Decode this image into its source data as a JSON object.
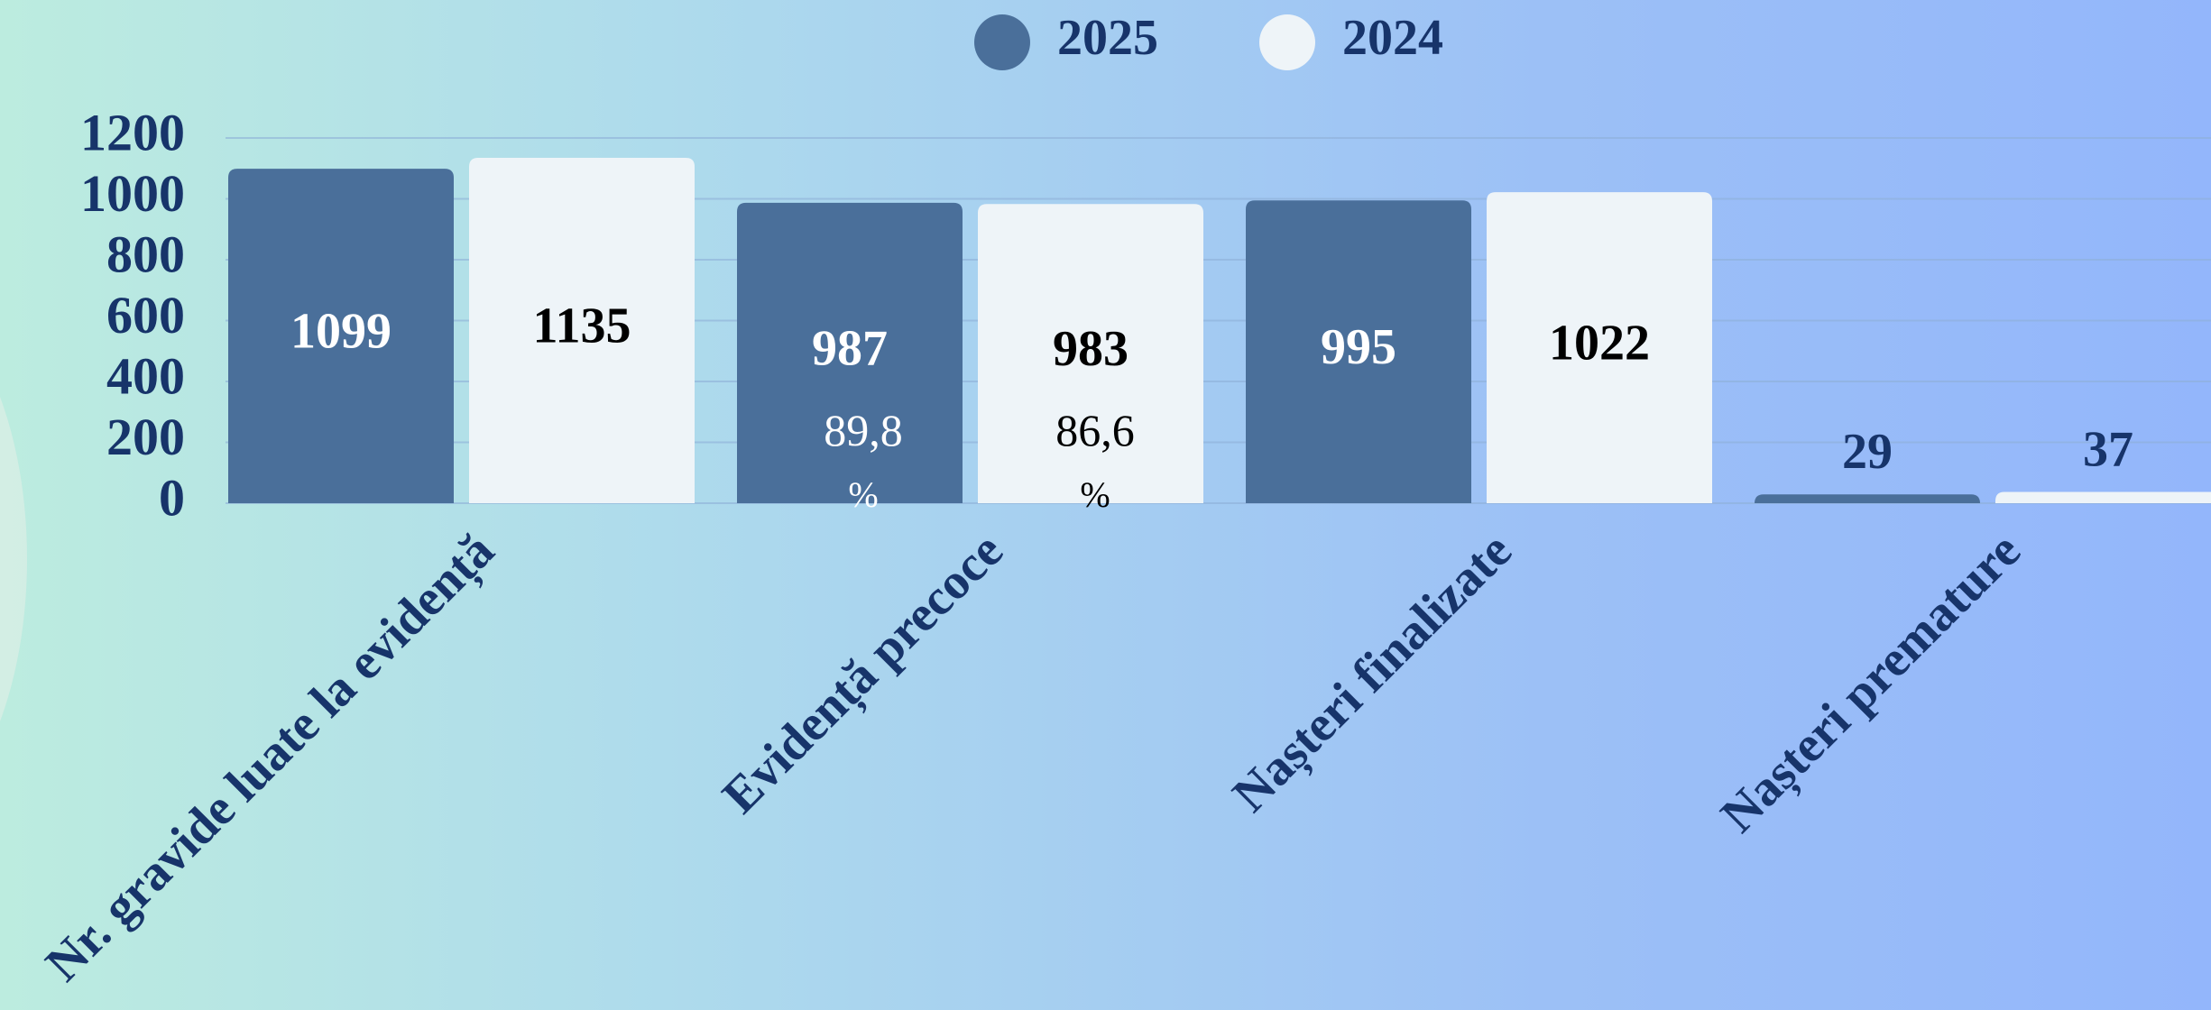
{
  "chart_data": {
    "type": "bar",
    "categories": [
      "Nr. gravide luate la evidență",
      "Evidență precoce",
      "Nașteri finalizate",
      "Nașteri premature"
    ],
    "series": [
      {
        "name": "2025",
        "color": "#4a6f9a",
        "values": [
          1099,
          987,
          995,
          29
        ]
      },
      {
        "name": "2024",
        "color": "#eef4f8",
        "values": [
          1135,
          983,
          1022,
          37
        ]
      }
    ],
    "annotations": [
      "89,8 %",
      "86,6 %"
    ],
    "ylim": [
      0,
      1200
    ],
    "yticks": [
      0,
      200,
      400,
      600,
      800,
      1000,
      1200
    ],
    "grid": true
  }
}
